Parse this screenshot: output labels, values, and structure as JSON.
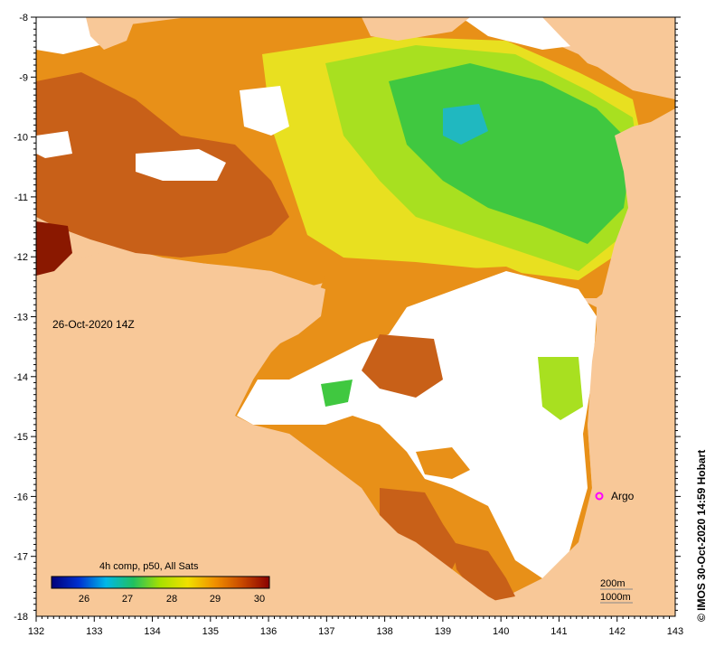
{
  "map": {
    "timestamp": "26-Oct-2020 14Z",
    "x_ticks": [
      "132",
      "133",
      "134",
      "135",
      "136",
      "137",
      "138",
      "139",
      "140",
      "141",
      "142",
      "143"
    ],
    "y_ticks": [
      "-8",
      "-9",
      "-10",
      "-11",
      "-12",
      "-13",
      "-14",
      "-15",
      "-16",
      "-17",
      "-18"
    ],
    "legend": {
      "title": "4h comp, p50, All Sats",
      "labels": [
        "26",
        "27",
        "28",
        "29",
        "30"
      ],
      "colors": [
        "#00007a",
        "#0030d0",
        "#00b8e8",
        "#20c060",
        "#a8e000",
        "#f0e000",
        "#f09000",
        "#c84800",
        "#8a0000"
      ]
    },
    "argo": {
      "label": "Argo",
      "color": "#ff00ff"
    },
    "scale": {
      "line1": "200m",
      "line2": "1000m"
    },
    "credit": "© IMOS 30-Oct-2020 14:59 Hobart",
    "colors": {
      "land": "#f8c898",
      "nodata": "#ffffff",
      "warm": "#c86018",
      "orange": "#e89018",
      "yellow": "#e8e020",
      "lime": "#a8e020",
      "green": "#40c840",
      "cyan": "#20b8c0",
      "dark": "#8a1800"
    }
  }
}
